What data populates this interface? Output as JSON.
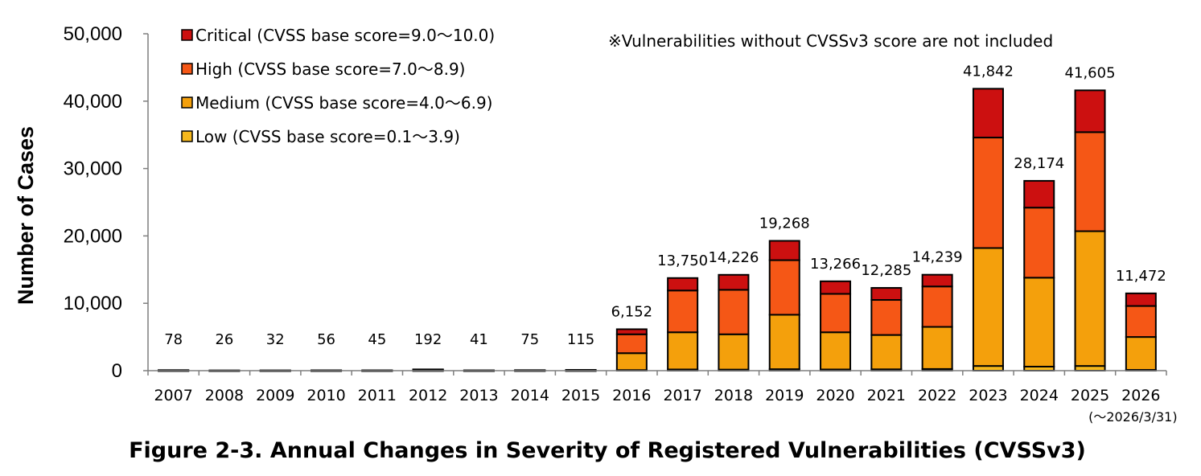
{
  "chart_data": {
    "type": "bar",
    "stacked": true,
    "title": "",
    "caption": "Figure 2-3. Annual Changes in Severity of Registered Vulnerabilities (CVSSv3)",
    "note": "※Vulnerabilities without CVSSv3 score are not included",
    "xlabel": "",
    "ylabel": "Number of Cases",
    "ylim": [
      0,
      50000
    ],
    "yticks": [
      0,
      10000,
      20000,
      30000,
      40000,
      50000
    ],
    "ytick_labels": [
      "0",
      "10,000",
      "20,000",
      "30,000",
      "40,000",
      "50,000"
    ],
    "categories": [
      "2007",
      "2008",
      "2009",
      "2010",
      "2011",
      "2012",
      "2013",
      "2014",
      "2015",
      "2016",
      "2017",
      "2018",
      "2019",
      "2020",
      "2021",
      "2022",
      "2023",
      "2024",
      "2025",
      "2026"
    ],
    "category_sublabels": {
      "2026": "(〜2026/3/31)"
    },
    "totals": [
      78,
      26,
      32,
      56,
      45,
      192,
      41,
      75,
      115,
      6152,
      13750,
      14226,
      19268,
      13266,
      12285,
      14239,
      41842,
      28174,
      41605,
      11472
    ],
    "total_labels": [
      "78",
      "26",
      "32",
      "56",
      "45",
      "192",
      "41",
      "75",
      "115",
      "6,152",
      "13,750",
      "14,226",
      "19,268",
      "13,266",
      "12,285",
      "14,239",
      "41,842",
      "28,174",
      "41,605",
      "11,472"
    ],
    "legend_position": "top-left",
    "grid": false,
    "series": [
      {
        "name": "Low (CVSS base score=0.1〜3.9)",
        "color": "#F6B81C",
        "values": [
          5,
          2,
          2,
          4,
          3,
          12,
          3,
          5,
          8,
          90,
          180,
          160,
          220,
          180,
          200,
          250,
          700,
          600,
          700,
          120
        ]
      },
      {
        "name": "Medium (CVSS base score=4.0〜6.9)",
        "color": "#F4A00C",
        "values": [
          30,
          10,
          12,
          22,
          18,
          78,
          16,
          30,
          45,
          2510,
          5520,
          5240,
          8080,
          5520,
          5100,
          6250,
          17500,
          13200,
          20000,
          4880
        ]
      },
      {
        "name": "High (CVSS base score=7.0〜8.9)",
        "color": "#F55716",
        "values": [
          30,
          10,
          12,
          20,
          16,
          72,
          14,
          28,
          42,
          2800,
          6200,
          6600,
          8100,
          5700,
          5200,
          6000,
          16400,
          10400,
          14700,
          4600
        ]
      },
      {
        "name": "Critical (CVSS base score=9.0〜10.0)",
        "color": "#CC1010",
        "values": [
          13,
          4,
          6,
          10,
          8,
          30,
          8,
          12,
          20,
          752,
          1850,
          2226,
          2868,
          1866,
          1785,
          1739,
          7242,
          3974,
          6205,
          1872
        ]
      }
    ]
  }
}
